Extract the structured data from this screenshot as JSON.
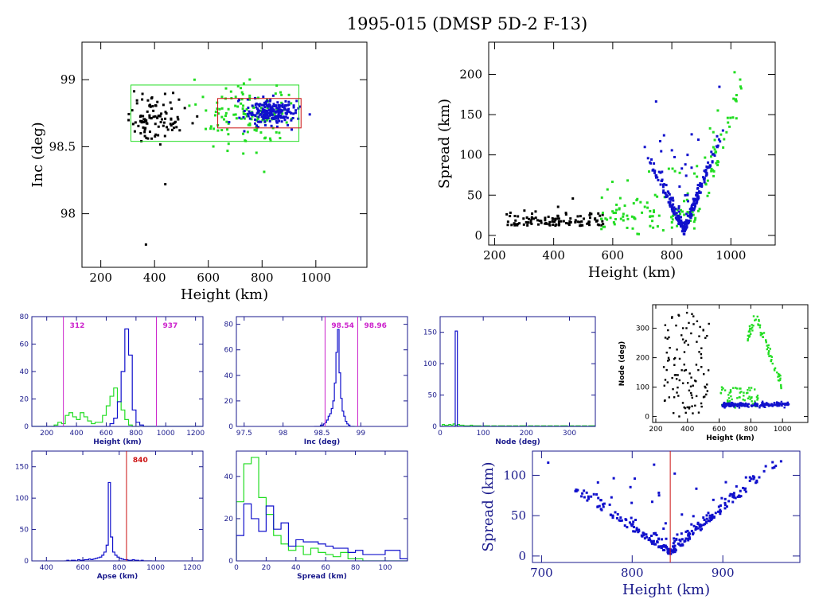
{
  "figure": {
    "title": "1995-015 (DMSP 5D-2 F-13)"
  },
  "colors": {
    "black": "#000000",
    "green": "#22dd22",
    "blue": "#1010cc",
    "magenta": "#cc22cc",
    "red": "#cc1111",
    "axis": "#1a1a8c"
  },
  "chart_data": [
    {
      "id": "inc-vs-height",
      "type": "scatter",
      "xlabel": "Height (km)",
      "ylabel": "Inc (deg)",
      "xlim": [
        130,
        1190
      ],
      "ylim": [
        97.6,
        99.28
      ],
      "xticks": [
        200,
        400,
        600,
        800,
        1000
      ],
      "yticks": [
        98,
        98.5,
        99
      ],
      "ytick_labels": [
        "98",
        "98.5",
        "99"
      ],
      "boxes": [
        {
          "color": "green",
          "x": [
            312,
            937
          ],
          "y": [
            98.54,
            98.96
          ]
        },
        {
          "color": "red",
          "x": [
            635,
            945
          ],
          "y": [
            98.64,
            98.86
          ]
        }
      ],
      "series": [
        {
          "color": "black",
          "cx": 400,
          "cy": 98.72,
          "sx": 60,
          "sy": 0.09,
          "n": 100,
          "xr": [
            300,
            560
          ]
        },
        {
          "color": "green",
          "cx": 760,
          "cy": 98.73,
          "sx": 100,
          "sy": 0.12,
          "n": 130,
          "xr": [
            480,
            920
          ]
        },
        {
          "color": "blue",
          "cx": 830,
          "cy": 98.76,
          "sx": 45,
          "sy": 0.05,
          "n": 220,
          "xr": [
            660,
            1060
          ]
        }
      ],
      "outliers": [
        {
          "color": "black",
          "x": 440,
          "y": 98.22
        },
        {
          "color": "black",
          "x": 368,
          "y": 97.77
        }
      ]
    },
    {
      "id": "spread-vs-height-top",
      "type": "scatter",
      "xlabel": "Height (km)",
      "ylabel": "Spread (km)",
      "xlim": [
        180,
        1150
      ],
      "ylim": [
        -12,
        240
      ],
      "xticks": [
        200,
        400,
        600,
        800,
        1000
      ],
      "yticks": [
        0,
        50,
        100,
        150,
        200
      ],
      "series": [
        {
          "color": "black",
          "model": "flat",
          "xr": [
            240,
            570
          ],
          "base": 12,
          "noise": 12,
          "n": 110
        },
        {
          "color": "green",
          "model": "rise",
          "xr": [
            560,
            1040
          ],
          "n": 150
        },
        {
          "color": "blue",
          "model": "vee",
          "xr": [
            620,
            1050
          ],
          "n": 260
        }
      ]
    },
    {
      "id": "hist-height",
      "type": "histogram",
      "xlabel": "Height (km)",
      "ylabel": "",
      "xlim": [
        100,
        1250
      ],
      "ylim": [
        0,
        80
      ],
      "xticks": [
        200,
        400,
        600,
        800,
        1000,
        1200
      ],
      "yticks": [
        0,
        20,
        40,
        60,
        80
      ],
      "vlines": [
        {
          "x": 312,
          "label": "312",
          "color": "magenta"
        },
        {
          "x": 937,
          "label": "937",
          "color": "magenta"
        }
      ],
      "series": [
        {
          "color": "green",
          "x0": 100,
          "dx": 25,
          "values": [
            0,
            0,
            0,
            0,
            0,
            0,
            1,
            3,
            2,
            8,
            10,
            7,
            5,
            10,
            7,
            4,
            2,
            3,
            3,
            8,
            15,
            22,
            28,
            18,
            12,
            5,
            1,
            0,
            0,
            0,
            0,
            0,
            0,
            0,
            0,
            0,
            0,
            0,
            0,
            0,
            0,
            0,
            0,
            0,
            0,
            0
          ]
        },
        {
          "color": "blue",
          "x0": 100,
          "dx": 25,
          "values": [
            0,
            0,
            0,
            0,
            0,
            0,
            0,
            0,
            0,
            0,
            0,
            0,
            0,
            0,
            0,
            0,
            0,
            0,
            0,
            0,
            0,
            2,
            6,
            18,
            40,
            71,
            52,
            12,
            3,
            1,
            0,
            0,
            0,
            0,
            0,
            0,
            0,
            0,
            0,
            0,
            0,
            0,
            0,
            0,
            0,
            0
          ]
        }
      ]
    },
    {
      "id": "hist-inc",
      "type": "histogram",
      "xlabel": "Inc (deg)",
      "ylabel": "",
      "xlim": [
        97.4,
        99.6
      ],
      "ylim": [
        0,
        86
      ],
      "xticks": [
        97.5,
        98,
        98.5,
        99
      ],
      "xtick_labels": [
        "97.5",
        "98",
        "98.5",
        "99"
      ],
      "yticks": [
        0,
        20,
        40,
        60,
        80
      ],
      "vlines": [
        {
          "x": 98.54,
          "label": "98.54",
          "color": "magenta"
        },
        {
          "x": 98.96,
          "label": "98.96",
          "color": "magenta"
        }
      ],
      "series": [
        {
          "color": "blue",
          "x0": 98.4,
          "dx": 0.02,
          "values": [
            0,
            0,
            0,
            0,
            1,
            1,
            2,
            3,
            5,
            8,
            10,
            14,
            20,
            34,
            58,
            76,
            42,
            22,
            12,
            8,
            4,
            2,
            1,
            0,
            0,
            0
          ]
        }
      ]
    },
    {
      "id": "hist-node",
      "type": "histogram",
      "xlabel": "Node (deg)",
      "ylabel": "",
      "xlim": [
        0,
        360
      ],
      "ylim": [
        0,
        175
      ],
      "xticks": [
        0,
        100,
        200,
        300
      ],
      "yticks": [
        0,
        50,
        100,
        150
      ],
      "series": [
        {
          "color": "green",
          "x0": 0,
          "dx": 5,
          "values": [
            0,
            3,
            2,
            2,
            3,
            2,
            4,
            2,
            3,
            2,
            2,
            1,
            1,
            1,
            2,
            1,
            1,
            1,
            1,
            0,
            1,
            1,
            1,
            0,
            1,
            1,
            0,
            1,
            1,
            1,
            0,
            1,
            1,
            0,
            1,
            1,
            0,
            1,
            1,
            1,
            0,
            1,
            1,
            0,
            1,
            1,
            0,
            1,
            1,
            0,
            1,
            1,
            0,
            1,
            1,
            0,
            1,
            1,
            1,
            0,
            1,
            1,
            0,
            1,
            1,
            0,
            1,
            1,
            0,
            1,
            1,
            1
          ]
        },
        {
          "color": "blue",
          "x0": 0,
          "dx": 5,
          "values": [
            0,
            0,
            0,
            0,
            0,
            0,
            0,
            152,
            0,
            0,
            0,
            0,
            0,
            0,
            0,
            0,
            0,
            0,
            0,
            0,
            0,
            0,
            0,
            0,
            0,
            0,
            0,
            0,
            0,
            0,
            0,
            0,
            0,
            0,
            0,
            0,
            0,
            0,
            0,
            0,
            0,
            0,
            0,
            0,
            0,
            0,
            0,
            0,
            0,
            0,
            0,
            0,
            0,
            0,
            0,
            0,
            0,
            0,
            0,
            0,
            0,
            0,
            0,
            0,
            0,
            0,
            0,
            0,
            0,
            0,
            0,
            0
          ]
        }
      ]
    },
    {
      "id": "node-vs-height",
      "type": "scatter",
      "xlabel": "Height (km)",
      "ylabel": "Node (deg)",
      "xlim": [
        180,
        1160
      ],
      "ylim": [
        -20,
        380
      ],
      "xticks": [
        200,
        400,
        600,
        800,
        1000
      ],
      "yticks": [
        0,
        100,
        200,
        300
      ],
      "series": [
        {
          "color": "black",
          "model": "uniform",
          "xr": [
            250,
            540
          ],
          "yr": [
            0,
            360
          ],
          "n": 110
        },
        {
          "color": "green",
          "model": "arc",
          "xr": [
            560,
            1000
          ],
          "n": 130
        },
        {
          "color": "blue",
          "model": "band",
          "xr": [
            620,
            1040
          ],
          "y": 40,
          "n": 200
        }
      ]
    },
    {
      "id": "hist-apse",
      "type": "histogram",
      "xlabel": "Apse (km)",
      "ylabel": "",
      "xlim": [
        320,
        1260
      ],
      "ylim": [
        0,
        175
      ],
      "xticks": [
        400,
        600,
        800,
        1000,
        1200
      ],
      "yticks": [
        0,
        50,
        100,
        150
      ],
      "vlines": [
        {
          "x": 840,
          "label": "840",
          "color": "red"
        }
      ],
      "series": [
        {
          "color": "blue",
          "x0": 500,
          "dx": 12,
          "values": [
            0,
            1,
            0,
            1,
            1,
            0,
            2,
            1,
            1,
            2,
            2,
            3,
            2,
            3,
            4,
            5,
            6,
            9,
            14,
            25,
            125,
            38,
            14,
            9,
            6,
            4,
            3,
            2,
            2,
            1,
            1,
            2,
            1,
            1,
            0,
            1,
            0,
            0,
            0,
            0
          ]
        }
      ]
    },
    {
      "id": "hist-spread",
      "type": "histogram",
      "xlabel": "Spread (km)",
      "ylabel": "",
      "xlim": [
        0,
        115
      ],
      "ylim": [
        0,
        52
      ],
      "xticks": [
        0,
        20,
        40,
        60,
        80,
        100
      ],
      "yticks": [
        0,
        20,
        40
      ],
      "series": [
        {
          "color": "green",
          "x0": 0,
          "dx": 5,
          "values": [
            28,
            46,
            49,
            30,
            22,
            12,
            8,
            5,
            7,
            3,
            6,
            4,
            3,
            2,
            4,
            1,
            1,
            0,
            0,
            0,
            0,
            0,
            0
          ]
        },
        {
          "color": "blue",
          "x0": 0,
          "dx": 5,
          "values": [
            12,
            27,
            20,
            14,
            26,
            15,
            18,
            7,
            10,
            9,
            9,
            8,
            7,
            6,
            6,
            4,
            5,
            3,
            3,
            3,
            5,
            5,
            1
          ]
        }
      ]
    },
    {
      "id": "spread-vs-height-zoom",
      "type": "scatter",
      "xlabel": "Height (km)",
      "ylabel": "Spread (km)",
      "xlim": [
        690,
        985
      ],
      "ylim": [
        -8,
        130
      ],
      "xticks": [
        700,
        800,
        900
      ],
      "yticks": [
        0,
        50,
        100
      ],
      "vlines": [
        {
          "x": 842,
          "color": "red"
        }
      ],
      "series": [
        {
          "color": "blue",
          "model": "vee",
          "xr": [
            705,
            980
          ],
          "n": 280
        }
      ]
    }
  ]
}
